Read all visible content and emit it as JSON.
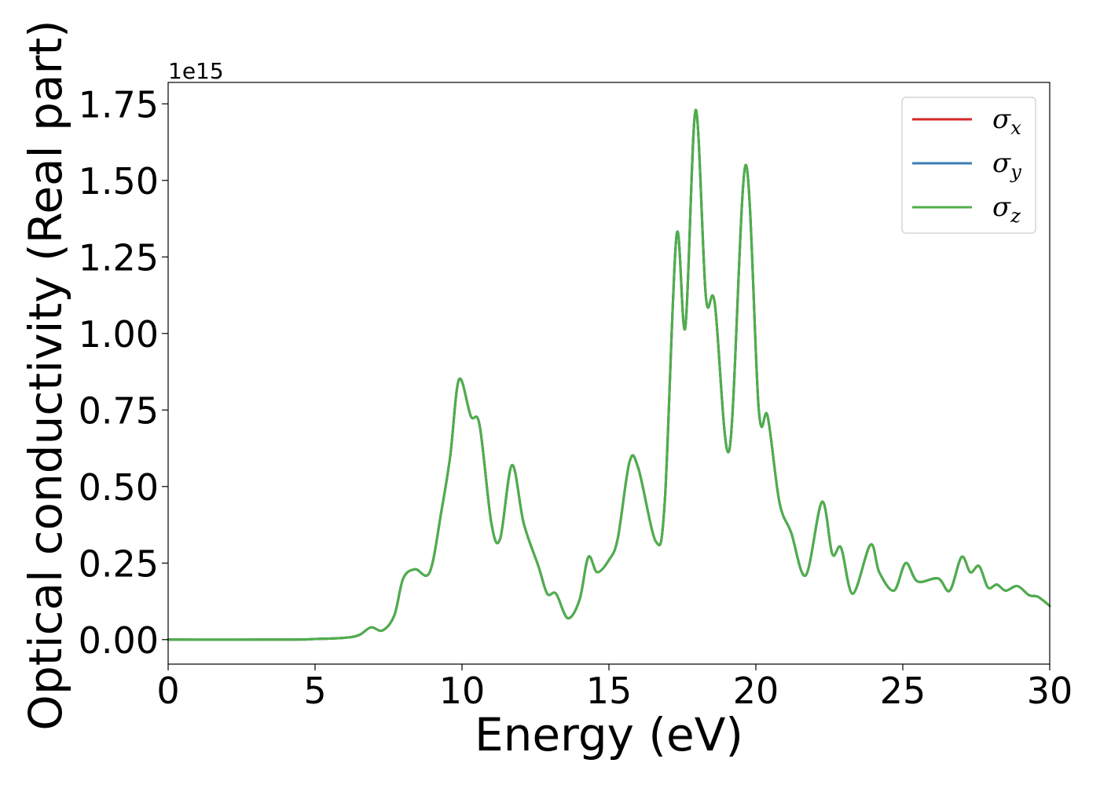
{
  "chart_data": {
    "type": "line",
    "xlabel": "Energy (eV)",
    "ylabel": "Optical conductivity (Real part)",
    "y_offset_label": "1e15",
    "xlim": [
      0,
      30
    ],
    "ylim": [
      -0.08,
      1.82
    ],
    "x_ticks": [
      0,
      5,
      10,
      15,
      20,
      25,
      30
    ],
    "x_tick_labels": [
      "0",
      "5",
      "10",
      "15",
      "20",
      "25",
      "30"
    ],
    "y_ticks": [
      0.0,
      0.25,
      0.5,
      0.75,
      1.0,
      1.25,
      1.5,
      1.75
    ],
    "y_tick_labels": [
      "0.00",
      "0.25",
      "0.50",
      "0.75",
      "1.00",
      "1.25",
      "1.50",
      "1.75"
    ],
    "grid": false,
    "legend_position": "top-right",
    "x": [
      0,
      4,
      5,
      6,
      6.5,
      6.9,
      7.3,
      7.7,
      8.0,
      8.4,
      8.9,
      9.3,
      9.6,
      9.9,
      10.3,
      10.6,
      11.0,
      11.3,
      11.7,
      12.1,
      12.6,
      12.9,
      13.2,
      13.6,
      14.0,
      14.3,
      14.6,
      15.0,
      15.3,
      15.7,
      16.0,
      16.6,
      16.9,
      17.3,
      17.6,
      17.95,
      18.3,
      18.6,
      19.1,
      19.65,
      20.1,
      20.4,
      20.8,
      21.2,
      21.7,
      22.25,
      22.6,
      22.9,
      23.3,
      23.9,
      24.2,
      24.7,
      25.1,
      25.5,
      26.2,
      26.6,
      27.0,
      27.3,
      27.6,
      27.9,
      28.2,
      28.5,
      28.9,
      29.3,
      29.6,
      30.0
    ],
    "series": [
      {
        "name": "σx",
        "color": "#d62728",
        "values": [
          0,
          0,
          0.002,
          0.006,
          0.015,
          0.04,
          0.03,
          0.08,
          0.2,
          0.23,
          0.22,
          0.42,
          0.6,
          0.85,
          0.73,
          0.7,
          0.38,
          0.33,
          0.57,
          0.38,
          0.24,
          0.15,
          0.15,
          0.07,
          0.13,
          0.27,
          0.22,
          0.26,
          0.33,
          0.58,
          0.56,
          0.32,
          0.45,
          1.32,
          1.02,
          1.73,
          1.12,
          1.1,
          0.62,
          1.55,
          0.75,
          0.73,
          0.45,
          0.35,
          0.21,
          0.45,
          0.28,
          0.3,
          0.15,
          0.31,
          0.22,
          0.16,
          0.25,
          0.19,
          0.2,
          0.16,
          0.27,
          0.22,
          0.24,
          0.17,
          0.18,
          0.16,
          0.175,
          0.145,
          0.14,
          0.11
        ]
      },
      {
        "name": "σy",
        "color": "#3a7db5",
        "values": [
          0,
          0,
          0.002,
          0.006,
          0.015,
          0.04,
          0.03,
          0.08,
          0.2,
          0.23,
          0.22,
          0.42,
          0.6,
          0.85,
          0.73,
          0.7,
          0.38,
          0.33,
          0.57,
          0.38,
          0.24,
          0.15,
          0.15,
          0.07,
          0.13,
          0.27,
          0.22,
          0.26,
          0.33,
          0.58,
          0.56,
          0.32,
          0.45,
          1.32,
          1.02,
          1.73,
          1.12,
          1.1,
          0.62,
          1.55,
          0.75,
          0.73,
          0.45,
          0.35,
          0.21,
          0.45,
          0.28,
          0.3,
          0.15,
          0.31,
          0.22,
          0.16,
          0.25,
          0.19,
          0.2,
          0.16,
          0.27,
          0.22,
          0.24,
          0.17,
          0.18,
          0.16,
          0.175,
          0.145,
          0.14,
          0.11
        ]
      },
      {
        "name": "σz",
        "color": "#4daf4a",
        "values": [
          0,
          0,
          0.002,
          0.006,
          0.015,
          0.04,
          0.03,
          0.08,
          0.2,
          0.23,
          0.22,
          0.42,
          0.6,
          0.85,
          0.73,
          0.7,
          0.38,
          0.33,
          0.57,
          0.38,
          0.24,
          0.15,
          0.15,
          0.07,
          0.13,
          0.27,
          0.22,
          0.26,
          0.33,
          0.58,
          0.56,
          0.32,
          0.45,
          1.32,
          1.02,
          1.73,
          1.12,
          1.1,
          0.62,
          1.55,
          0.75,
          0.73,
          0.45,
          0.35,
          0.21,
          0.45,
          0.28,
          0.3,
          0.15,
          0.31,
          0.22,
          0.16,
          0.25,
          0.19,
          0.2,
          0.16,
          0.27,
          0.22,
          0.24,
          0.17,
          0.18,
          0.16,
          0.175,
          0.145,
          0.14,
          0.11
        ]
      }
    ],
    "legend": [
      {
        "symbol": "σ",
        "subscript": "x"
      },
      {
        "symbol": "σ",
        "subscript": "y"
      },
      {
        "symbol": "σ",
        "subscript": "z"
      }
    ]
  }
}
